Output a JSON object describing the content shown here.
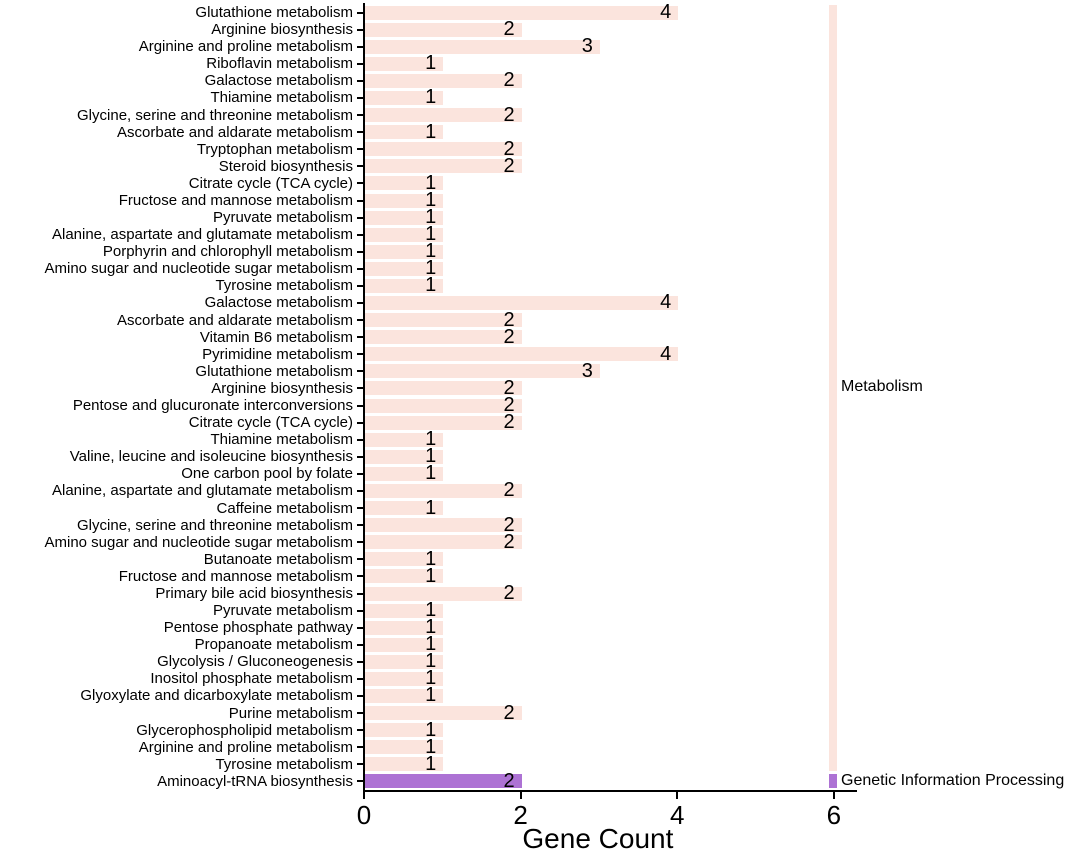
{
  "chart_data": {
    "type": "bar",
    "orientation": "horizontal",
    "title": "",
    "xlabel": "Gene Count",
    "ylabel": "",
    "xlim": [
      0,
      6.35
    ],
    "xticks": [
      0,
      2,
      4,
      6
    ],
    "grid": false,
    "legend_position": "none",
    "bar_colors": {
      "Metabolism": "#fbe4dd",
      "Genetic Information Processing": "#ad72d4"
    },
    "category_strip_x": 6,
    "group_labels": [
      {
        "text": "Metabolism",
        "group": "Metabolism"
      },
      {
        "text": "Genetic Information Processing",
        "group": "Genetic Information Processing"
      }
    ],
    "rows": [
      {
        "label": "Glutathione metabolism",
        "value": 4,
        "group": "Metabolism"
      },
      {
        "label": "Arginine biosynthesis",
        "value": 2,
        "group": "Metabolism"
      },
      {
        "label": "Arginine and proline metabolism",
        "value": 3,
        "group": "Metabolism"
      },
      {
        "label": "Riboflavin metabolism",
        "value": 1,
        "group": "Metabolism"
      },
      {
        "label": "Galactose metabolism",
        "value": 2,
        "group": "Metabolism"
      },
      {
        "label": "Thiamine metabolism",
        "value": 1,
        "group": "Metabolism"
      },
      {
        "label": "Glycine, serine and threonine metabolism",
        "value": 2,
        "group": "Metabolism"
      },
      {
        "label": "Ascorbate and aldarate metabolism",
        "value": 1,
        "group": "Metabolism"
      },
      {
        "label": "Tryptophan metabolism",
        "value": 2,
        "group": "Metabolism"
      },
      {
        "label": "Steroid biosynthesis",
        "value": 2,
        "group": "Metabolism"
      },
      {
        "label": "Citrate cycle (TCA cycle)",
        "value": 1,
        "group": "Metabolism"
      },
      {
        "label": "Fructose and mannose metabolism",
        "value": 1,
        "group": "Metabolism"
      },
      {
        "label": "Pyruvate metabolism",
        "value": 1,
        "group": "Metabolism"
      },
      {
        "label": "Alanine, aspartate and glutamate metabolism",
        "value": 1,
        "group": "Metabolism"
      },
      {
        "label": "Porphyrin and chlorophyll metabolism",
        "value": 1,
        "group": "Metabolism"
      },
      {
        "label": "Amino sugar and nucleotide sugar metabolism",
        "value": 1,
        "group": "Metabolism"
      },
      {
        "label": "Tyrosine metabolism",
        "value": 1,
        "group": "Metabolism"
      },
      {
        "label": "Galactose metabolism",
        "value": 4,
        "group": "Metabolism"
      },
      {
        "label": "Ascorbate and aldarate metabolism",
        "value": 2,
        "group": "Metabolism"
      },
      {
        "label": "Vitamin B6 metabolism",
        "value": 2,
        "group": "Metabolism"
      },
      {
        "label": "Pyrimidine metabolism",
        "value": 4,
        "group": "Metabolism"
      },
      {
        "label": "Glutathione metabolism",
        "value": 3,
        "group": "Metabolism"
      },
      {
        "label": "Arginine biosynthesis",
        "value": 2,
        "group": "Metabolism"
      },
      {
        "label": "Pentose and glucuronate interconversions",
        "value": 2,
        "group": "Metabolism"
      },
      {
        "label": "Citrate cycle (TCA cycle)",
        "value": 2,
        "group": "Metabolism"
      },
      {
        "label": "Thiamine metabolism",
        "value": 1,
        "group": "Metabolism"
      },
      {
        "label": "Valine, leucine and isoleucine biosynthesis",
        "value": 1,
        "group": "Metabolism"
      },
      {
        "label": "One carbon pool by folate",
        "value": 1,
        "group": "Metabolism"
      },
      {
        "label": "Alanine, aspartate and glutamate metabolism",
        "value": 2,
        "group": "Metabolism"
      },
      {
        "label": "Caffeine metabolism",
        "value": 1,
        "group": "Metabolism"
      },
      {
        "label": "Glycine, serine and threonine metabolism",
        "value": 2,
        "group": "Metabolism"
      },
      {
        "label": "Amino sugar and nucleotide sugar metabolism",
        "value": 2,
        "group": "Metabolism"
      },
      {
        "label": "Butanoate metabolism",
        "value": 1,
        "group": "Metabolism"
      },
      {
        "label": "Fructose and mannose metabolism",
        "value": 1,
        "group": "Metabolism"
      },
      {
        "label": "Primary bile acid biosynthesis",
        "value": 2,
        "group": "Metabolism"
      },
      {
        "label": "Pyruvate metabolism",
        "value": 1,
        "group": "Metabolism"
      },
      {
        "label": "Pentose phosphate pathway",
        "value": 1,
        "group": "Metabolism"
      },
      {
        "label": "Propanoate metabolism",
        "value": 1,
        "group": "Metabolism"
      },
      {
        "label": "Glycolysis / Gluconeogenesis",
        "value": 1,
        "group": "Metabolism"
      },
      {
        "label": "Inositol phosphate metabolism",
        "value": 1,
        "group": "Metabolism"
      },
      {
        "label": "Glyoxylate and dicarboxylate metabolism",
        "value": 1,
        "group": "Metabolism"
      },
      {
        "label": "Purine metabolism",
        "value": 2,
        "group": "Metabolism"
      },
      {
        "label": "Glycerophospholipid metabolism",
        "value": 1,
        "group": "Metabolism"
      },
      {
        "label": "Arginine and proline metabolism",
        "value": 1,
        "group": "Metabolism"
      },
      {
        "label": "Tyrosine metabolism",
        "value": 1,
        "group": "Metabolism"
      },
      {
        "label": "Aminoacyl-tRNA biosynthesis",
        "value": 2,
        "group": "Genetic Information Processing"
      }
    ]
  }
}
